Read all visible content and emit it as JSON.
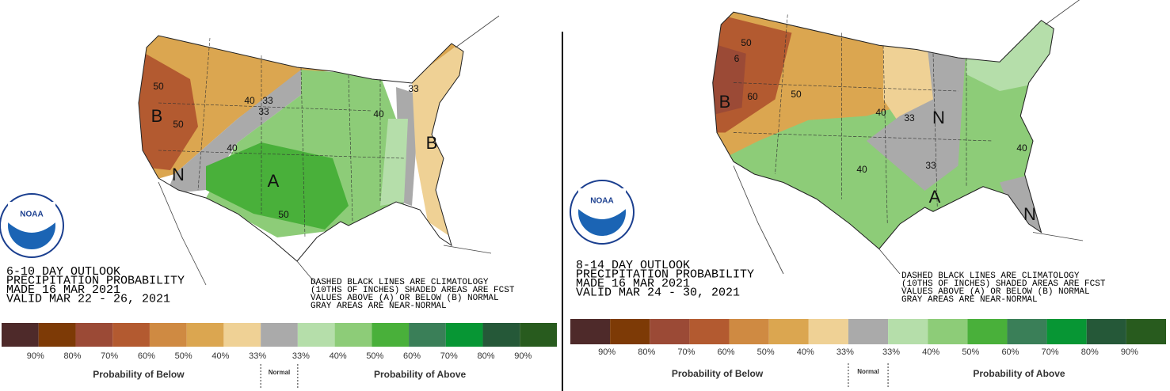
{
  "logo": "NOAA",
  "legend": {
    "colors": [
      "#4e2a2a",
      "#7d3a06",
      "#9b4a36",
      "#b35a30",
      "#cf8a42",
      "#dba650",
      "#efd195",
      "#aaaaaa",
      "#b5deaa",
      "#8dcc78",
      "#49b03a",
      "#3a7f58",
      "#079634",
      "#255838",
      "#285b1e"
    ],
    "labels": [
      "90%",
      "80%",
      "70%",
      "60%",
      "50%",
      "40%",
      "33%",
      "33%",
      "40%",
      "50%",
      "60%",
      "70%",
      "80%",
      "90%"
    ],
    "below": "Probability of Below",
    "normal": "Normal",
    "above": "Probability of Above"
  },
  "panels": [
    {
      "outlook": [
        "6-10 DAY OUTLOOK",
        "PRECIPITATION PROBABILITY",
        "MADE  16 MAR 2021",
        "VALID  MAR 22 - 26, 2021"
      ],
      "notes": [
        "DASHED BLACK LINES ARE CLIMATOLOGY",
        "(10THS OF INCHES) SHADED AREAS ARE FCST",
        "VALUES ABOVE (A) OR BELOW (B) NORMAL",
        "GRAY AREAS ARE NEAR-NORMAL"
      ],
      "map_labels": [
        "50",
        "B",
        "50",
        "40",
        "33",
        "33",
        "40",
        "N",
        "A",
        "50",
        "40",
        "33",
        "B"
      ]
    },
    {
      "outlook": [
        "8-14 DAY OUTLOOK",
        "PRECIPITATION PROBABILITY",
        "MADE  16 MAR 2021",
        "VALID  MAR 24 - 30, 2021"
      ],
      "notes": [
        "DASHED BLACK LINES ARE CLIMATOLOGY",
        "(10THS OF INCHES) SHADED AREAS ARE FCST",
        "VALUES ABOVE (A) OR BELOW (B) NORMAL",
        "GRAY AREAS ARE NEAR-NORMAL"
      ],
      "map_labels": [
        "50",
        "6",
        "B",
        "60",
        "50",
        "40",
        "33",
        "N",
        "40",
        "40",
        "33",
        "A",
        "N"
      ]
    }
  ]
}
